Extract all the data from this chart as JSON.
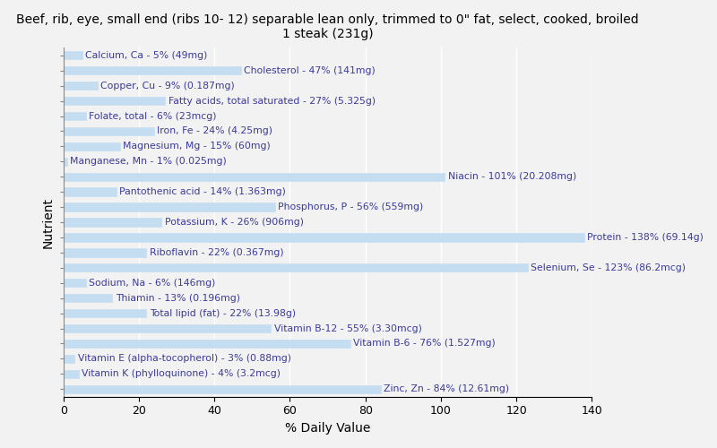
{
  "title": "Beef, rib, eye, small end (ribs 10- 12) separable lean only, trimmed to 0\" fat, select, cooked, broiled\n1 steak (231g)",
  "xlabel": "% Daily Value",
  "ylabel": "Nutrient",
  "nutrients": [
    {
      "label": "Calcium, Ca - 5% (49mg)",
      "value": 5
    },
    {
      "label": "Cholesterol - 47% (141mg)",
      "value": 47
    },
    {
      "label": "Copper, Cu - 9% (0.187mg)",
      "value": 9
    },
    {
      "label": "Fatty acids, total saturated - 27% (5.325g)",
      "value": 27
    },
    {
      "label": "Folate, total - 6% (23mcg)",
      "value": 6
    },
    {
      "label": "Iron, Fe - 24% (4.25mg)",
      "value": 24
    },
    {
      "label": "Magnesium, Mg - 15% (60mg)",
      "value": 15
    },
    {
      "label": "Manganese, Mn - 1% (0.025mg)",
      "value": 1
    },
    {
      "label": "Niacin - 101% (20.208mg)",
      "value": 101
    },
    {
      "label": "Pantothenic acid - 14% (1.363mg)",
      "value": 14
    },
    {
      "label": "Phosphorus, P - 56% (559mg)",
      "value": 56
    },
    {
      "label": "Potassium, K - 26% (906mg)",
      "value": 26
    },
    {
      "label": "Protein - 138% (69.14g)",
      "value": 138
    },
    {
      "label": "Riboflavin - 22% (0.367mg)",
      "value": 22
    },
    {
      "label": "Selenium, Se - 123% (86.2mcg)",
      "value": 123
    },
    {
      "label": "Sodium, Na - 6% (146mg)",
      "value": 6
    },
    {
      "label": "Thiamin - 13% (0.196mg)",
      "value": 13
    },
    {
      "label": "Total lipid (fat) - 22% (13.98g)",
      "value": 22
    },
    {
      "label": "Vitamin B-12 - 55% (3.30mcg)",
      "value": 55
    },
    {
      "label": "Vitamin B-6 - 76% (1.527mg)",
      "value": 76
    },
    {
      "label": "Vitamin E (alpha-tocopherol) - 3% (0.88mg)",
      "value": 3
    },
    {
      "label": "Vitamin K (phylloquinone) - 4% (3.2mcg)",
      "value": 4
    },
    {
      "label": "Zinc, Zn - 84% (12.61mg)",
      "value": 84
    }
  ],
  "bar_color": "#c5ddf0",
  "bar_edge_color": "#c5ddf0",
  "background_color": "#f2f2f2",
  "axes_background_color": "#f2f2f2",
  "text_color": "#3a3a9a",
  "xlim": [
    0,
    140
  ],
  "xticks": [
    0,
    20,
    40,
    60,
    80,
    100,
    120,
    140
  ],
  "title_fontsize": 10,
  "label_fontsize": 7.8,
  "tick_fontsize": 9
}
